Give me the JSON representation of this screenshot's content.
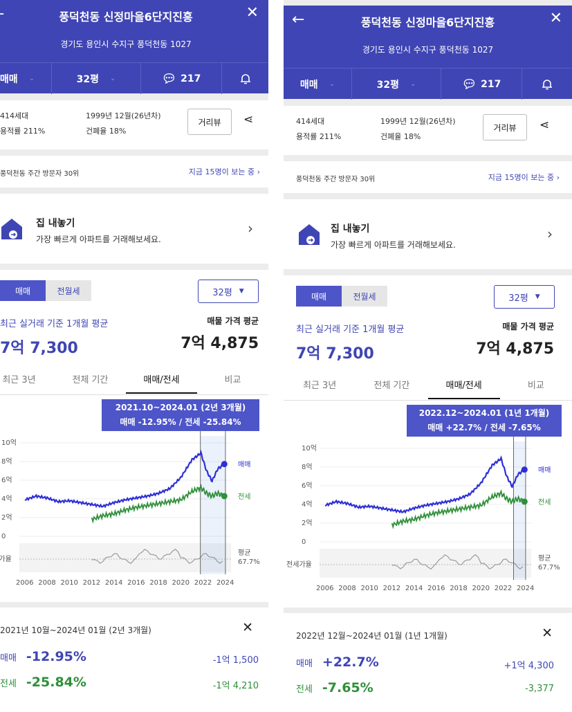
{
  "panels": [
    {
      "title": "풍덕천동 신정마을6단지진흥",
      "address": "경기도 용인시 수지구 풍덕천동 1027",
      "trade_type": "매매",
      "size": "32평",
      "comments": "217",
      "households": "414세대",
      "built": "1999년 12월(26년차)",
      "floor_area_ratio": "용적률 211%",
      "coverage_ratio": "건폐율 18%",
      "street_view": "거리뷰",
      "visitor_rank": "풍덕천동 주간 방문자 30위",
      "viewers": "지금 15명이 보는 중",
      "listing_title": "집 내놓기",
      "listing_desc": "가장 빠르게 아파트를 거래해보세요.",
      "tab_sale": "매매",
      "tab_rent": "전월세",
      "size_select": "32평",
      "avg_label": "최근 실거래 기준 1개월 평균",
      "avg_price": "7억 7,300",
      "ask_label": "매물 가격 평균",
      "ask_price": "7억 4,875",
      "periods": [
        "최근 3년",
        "전체 기간",
        "매매/전세",
        "비교"
      ],
      "tooltip_range": "2021.10~2024.01 (2년 3개월)",
      "tooltip_change": "매매 -12.95%  /  전세 -25.84%",
      "summary_title": "2021년 10월~2024년 01월 (2년 3개월)",
      "sale_label": "매매",
      "sale_pct": "-12.95%",
      "sale_amt": "-1억 1,500",
      "rent_label": "전세",
      "rent_pct": "-25.84%",
      "rent_amt": "-1억 4,210"
    },
    {
      "title": "풍덕천동 신정마을6단지진흥",
      "address": "경기도 용인시 수지구 풍덕천동 1027",
      "trade_type": "매매",
      "size": "32평",
      "comments": "217",
      "households": "414세대",
      "built": "1999년 12월(26년차)",
      "floor_area_ratio": "용적률 211%",
      "coverage_ratio": "건폐율 18%",
      "street_view": "거리뷰",
      "visitor_rank": "풍덕천동 주간 방문자 30위",
      "viewers": "지금 15명이 보는 중",
      "listing_title": "집 내놓기",
      "listing_desc": "가장 빠르게 아파트를 거래해보세요.",
      "tab_sale": "매매",
      "tab_rent": "전월세",
      "size_select": "32평",
      "avg_label": "최근 실거래 기준 1개월 평균",
      "avg_price": "7억 7,300",
      "ask_label": "매물 가격 평균",
      "ask_price": "7억 4,875",
      "periods": [
        "최근 3년",
        "전체 기간",
        "매매/전세",
        "비교"
      ],
      "tooltip_range": "2022.12~2024.01 (1년 1개월)",
      "tooltip_change": "매매 +22.7%  /  전세 -7.65%",
      "summary_title": "2022년 12월~2024년 01월 (1년 1개월)",
      "sale_label": "매매",
      "sale_pct": "+22.7%",
      "sale_amt": "+1억 4,300",
      "rent_label": "전세",
      "rent_pct": "-7.65%",
      "rent_amt": "-3,377"
    }
  ],
  "chart_data": [
    {
      "type": "line",
      "x": [
        2006,
        2007,
        2008,
        2009,
        2010,
        2011,
        2012,
        2013,
        2014,
        2015,
        2016,
        2017,
        2018,
        2019,
        2020,
        2021,
        2021.8,
        2022.3,
        2022.8,
        2023.3,
        2023.9
      ],
      "series": [
        {
          "name": "매매",
          "values": [
            3.9,
            4.3,
            4.1,
            3.7,
            3.8,
            3.6,
            3.4,
            3.2,
            3.6,
            3.9,
            4.1,
            4.3,
            4.6,
            5.1,
            6.3,
            8.2,
            8.9,
            7.0,
            5.9,
            7.2,
            7.73
          ]
        },
        {
          "name": "전세",
          "values": [
            null,
            null,
            null,
            null,
            null,
            null,
            1.8,
            2.2,
            2.4,
            2.8,
            3.1,
            3.3,
            3.5,
            3.7,
            3.9,
            4.8,
            5.2,
            4.6,
            4.3,
            4.6,
            4.3
          ]
        }
      ],
      "ratio_label": "전세가율",
      "ratio_avg_label": "평균",
      "ratio_avg": "67.7%",
      "y_ticks": [
        "10억",
        "8억",
        "6억",
        "4억",
        "2억",
        "0"
      ],
      "x_ticks": [
        "2006",
        "2008",
        "2010",
        "2012",
        "2014",
        "2016",
        "2018",
        "2020",
        "2022",
        "2024"
      ],
      "selected_range": [
        "2021.10",
        "2024.01"
      ]
    },
    {
      "type": "line",
      "x": [
        2006,
        2007,
        2008,
        2009,
        2010,
        2011,
        2012,
        2013,
        2014,
        2015,
        2016,
        2017,
        2018,
        2019,
        2020,
        2021,
        2021.8,
        2022.3,
        2022.8,
        2023.3,
        2023.9
      ],
      "series": [
        {
          "name": "매매",
          "values": [
            3.9,
            4.3,
            4.1,
            3.7,
            3.8,
            3.6,
            3.4,
            3.2,
            3.6,
            3.9,
            4.1,
            4.3,
            4.6,
            5.1,
            6.3,
            8.2,
            8.9,
            7.0,
            5.9,
            7.2,
            7.73
          ]
        },
        {
          "name": "전세",
          "values": [
            null,
            null,
            null,
            null,
            null,
            null,
            1.8,
            2.2,
            2.4,
            2.8,
            3.1,
            3.3,
            3.5,
            3.7,
            3.9,
            4.8,
            5.2,
            4.6,
            4.3,
            4.6,
            4.3
          ]
        }
      ],
      "ratio_label": "전세가율",
      "ratio_avg_label": "평균",
      "ratio_avg": "67.7%",
      "y_ticks": [
        "10억",
        "8억",
        "6억",
        "4억",
        "2억",
        "0"
      ],
      "x_ticks": [
        "2006",
        "2008",
        "2010",
        "2012",
        "2014",
        "2016",
        "2018",
        "2020",
        "2022",
        "2024"
      ],
      "selected_range": [
        "2022.12",
        "2024.01"
      ]
    }
  ],
  "colors": {
    "primary": "#3f45b4",
    "sale_line": "#2d2fd6",
    "rent_line": "#2f8f3a",
    "ratio_line": "#9a9a9a"
  }
}
